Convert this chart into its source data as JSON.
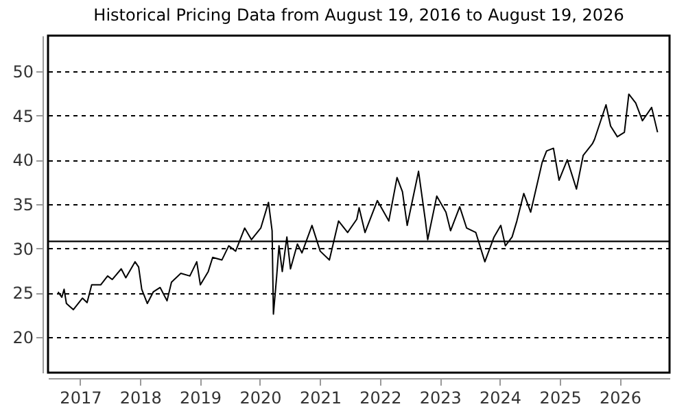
{
  "chart_data": {
    "type": "line",
    "title": "Historical Pricing Data from August 19, 2016 to August 19, 2026",
    "x": [
      "2016-08-19",
      "2016-09-11",
      "2016-09-25",
      "2016-10-09",
      "2016-11-20",
      "2017-01-15",
      "2017-02-12",
      "2017-03-12",
      "2017-05-06",
      "2017-06-17",
      "2017-07-15",
      "2017-09-08",
      "2017-10-06",
      "2017-12-01",
      "2017-12-23",
      "2018-01-11",
      "2018-02-14",
      "2018-03-22",
      "2018-05-03",
      "2018-06-14",
      "2018-07-11",
      "2018-09-06",
      "2018-10-31",
      "2018-12-12",
      "2019-01-03",
      "2019-02-20",
      "2019-03-19",
      "2019-05-14",
      "2019-06-25",
      "2019-08-06",
      "2019-09-30",
      "2019-11-10",
      "2020-01-06",
      "2020-02-22",
      "2020-03-15",
      "2020-03-23",
      "2020-04-12",
      "2020-04-26",
      "2020-05-16",
      "2020-06-13",
      "2020-07-05",
      "2020-08-16",
      "2020-09-13",
      "2020-11-13",
      "2021-01-02",
      "2021-02-27",
      "2021-04-24",
      "2021-06-18",
      "2021-08-13",
      "2021-08-27",
      "2021-10-02",
      "2021-12-16",
      "2022-02-24",
      "2022-04-15",
      "2022-05-18",
      "2022-06-16",
      "2022-08-24",
      "2022-10-05",
      "2022-10-19",
      "2022-12-13",
      "2023-02-07",
      "2023-03-07",
      "2023-05-02",
      "2023-06-13",
      "2023-08-08",
      "2023-10-02",
      "2023-11-27",
      "2024-01-07",
      "2024-02-04",
      "2024-03-16",
      "2024-04-14",
      "2024-05-26",
      "2024-07-07",
      "2024-09-15",
      "2024-10-12",
      "2024-11-23",
      "2024-12-27",
      "2025-02-15",
      "2025-04-12",
      "2025-05-23",
      "2025-07-18",
      "2025-07-31",
      "2025-10-09",
      "2025-11-06",
      "2025-12-17",
      "2026-01-29",
      "2026-02-25",
      "2026-04-08",
      "2026-05-19",
      "2026-07-14",
      "2026-08-19"
    ],
    "series": [
      {
        "color": "#000000",
        "values": [
          25.1,
          24.5,
          25.4,
          23.8,
          23.1,
          24.4,
          23.9,
          25.9,
          25.9,
          26.9,
          26.5,
          27.7,
          26.7,
          28.5,
          27.9,
          25.4,
          23.8,
          25.1,
          25.6,
          24.1,
          26.2,
          27.2,
          26.9,
          28.5,
          25.9,
          27.4,
          29.0,
          28.7,
          30.3,
          29.7,
          32.3,
          31.0,
          32.3,
          35.2,
          32.0,
          22.6,
          26.9,
          30.3,
          27.4,
          31.3,
          27.7,
          30.5,
          29.5,
          32.6,
          29.7,
          28.7,
          33.1,
          31.8,
          33.3,
          34.6,
          31.8,
          35.4,
          33.1,
          38.0,
          36.4,
          32.6,
          38.7,
          33.1,
          31.0,
          35.9,
          34.1,
          32.0,
          34.7,
          32.3,
          31.8,
          28.5,
          31.3,
          32.6,
          30.3,
          31.3,
          33.1,
          36.2,
          34.1,
          39.7,
          41.0,
          41.3,
          37.7,
          40.0,
          36.7,
          40.5,
          41.8,
          42.3,
          46.2,
          43.8,
          42.6,
          43.1,
          47.4,
          46.4,
          44.4,
          45.9,
          43.1
        ]
      }
    ],
    "xlim": [
      "2016-06-19",
      "2026-10-31"
    ],
    "xticks": [
      "2017",
      "2018",
      "2019",
      "2020",
      "2021",
      "2022",
      "2023",
      "2024",
      "2025",
      "2026"
    ],
    "ylim": [
      16,
      54
    ],
    "yticks": [
      20,
      25,
      30,
      35,
      40,
      45,
      50
    ],
    "grid": "y",
    "ref_lines": [
      {
        "axis": "y",
        "value": 30.8,
        "color": "#000000"
      }
    ],
    "line_style": "solid",
    "marker": "none"
  }
}
